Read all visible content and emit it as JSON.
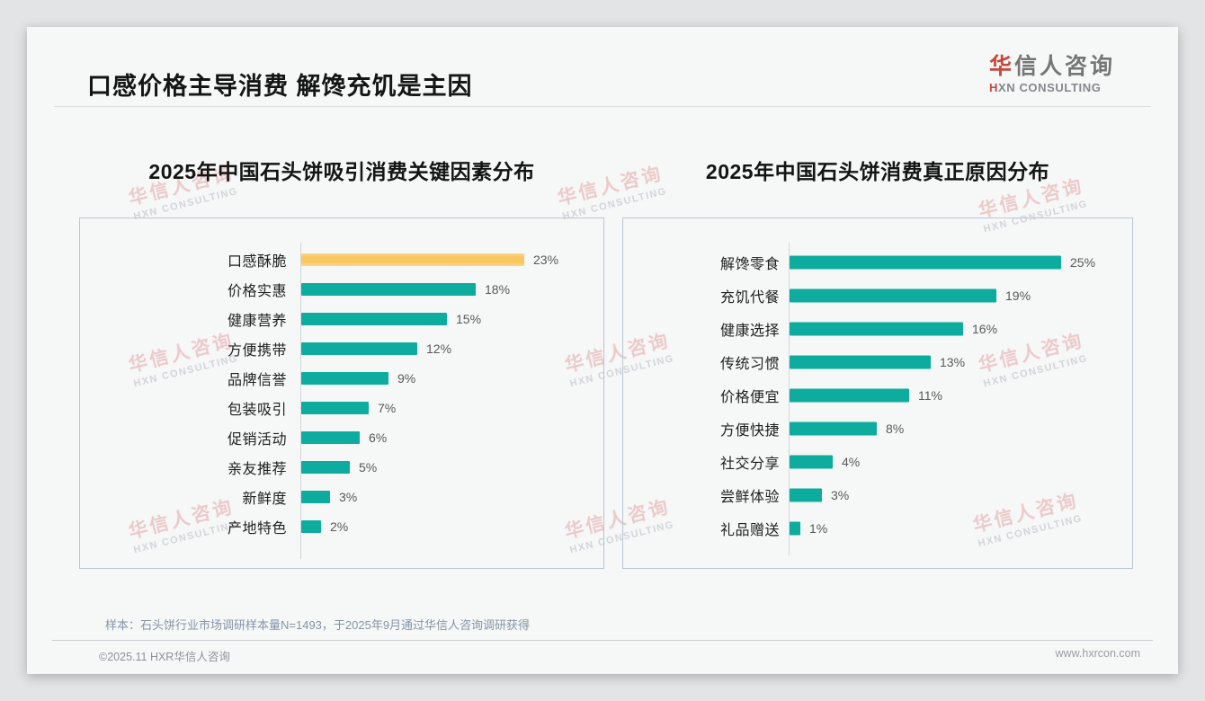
{
  "header": {
    "title": "口感价格主导消费 解馋充饥是主因",
    "logo": {
      "cn_accent": "华",
      "cn_rest": "信人咨询",
      "en_accent": "H",
      "en_rest": "XN CONSULTING"
    }
  },
  "watermark": {
    "line1": "华信人咨询",
    "line2": "HXN CONSULTING"
  },
  "colors": {
    "teal": "#0dac9f",
    "yellow": "#f9c75f",
    "logo_red": "#c9473c"
  },
  "chart_data": [
    {
      "type": "bar",
      "orientation": "horizontal",
      "title": "2025年中国石头饼吸引消费关键因素分布",
      "categories": [
        "口感酥脆",
        "价格实惠",
        "健康营养",
        "方便携带",
        "品牌信誉",
        "包装吸引",
        "促销活动",
        "亲友推荐",
        "新鲜度",
        "产地特色"
      ],
      "values": [
        23,
        18,
        15,
        12,
        9,
        7,
        6,
        5,
        3,
        2
      ],
      "unit": "%",
      "value_labels": [
        "23%",
        "18%",
        "15%",
        "12%",
        "9%",
        "7%",
        "6%",
        "5%",
        "3%",
        "2%"
      ],
      "highlight_index": 0,
      "highlight_color": "#f9c75f",
      "bar_color": "#0dac9f",
      "xlim": [
        0,
        25
      ],
      "grid": false,
      "legend": false
    },
    {
      "type": "bar",
      "orientation": "horizontal",
      "title": "2025年中国石头饼消费真正原因分布",
      "categories": [
        "解馋零食",
        "充饥代餐",
        "健康选择",
        "传统习惯",
        "价格便宜",
        "方便快捷",
        "社交分享",
        "尝鲜体验",
        "礼品赠送"
      ],
      "values": [
        25,
        19,
        16,
        13,
        11,
        8,
        4,
        3,
        1
      ],
      "unit": "%",
      "value_labels": [
        "25%",
        "19%",
        "16%",
        "13%",
        "11%",
        "8%",
        "4%",
        "3%",
        "1%"
      ],
      "highlight_index": null,
      "bar_color": "#0dac9f",
      "xlim": [
        0,
        27
      ],
      "grid": false,
      "legend": false
    }
  ],
  "note": "样本：石头饼行业市场调研样本量N=1493，于2025年9月通过华信人咨询调研获得",
  "footer": {
    "copyright": "©2025.11 HXR华信人咨询",
    "website": "www.hxrcon.com"
  }
}
